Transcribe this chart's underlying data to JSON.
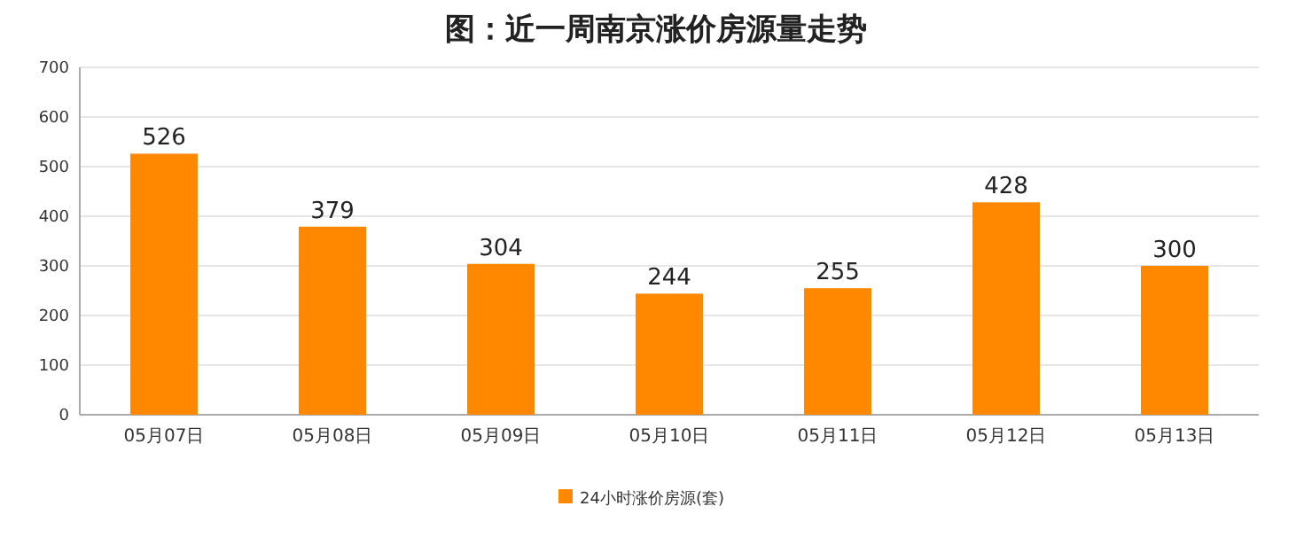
{
  "chart_data": {
    "type": "bar",
    "title": "图：近一周南京涨价房源量走势",
    "categories": [
      "05月07日",
      "05月08日",
      "05月09日",
      "05月10日",
      "05月11日",
      "05月12日",
      "05月13日"
    ],
    "series": [
      {
        "name": "24小时涨价房源(套)",
        "color": "#ff8800",
        "values": [
          526,
          379,
          304,
          244,
          255,
          428,
          300
        ]
      }
    ],
    "ylim": [
      0,
      700
    ],
    "yticks": [
      0,
      100,
      200,
      300,
      400,
      500,
      600,
      700
    ],
    "grid": "y",
    "legend": "bottom",
    "data_labels": true
  }
}
